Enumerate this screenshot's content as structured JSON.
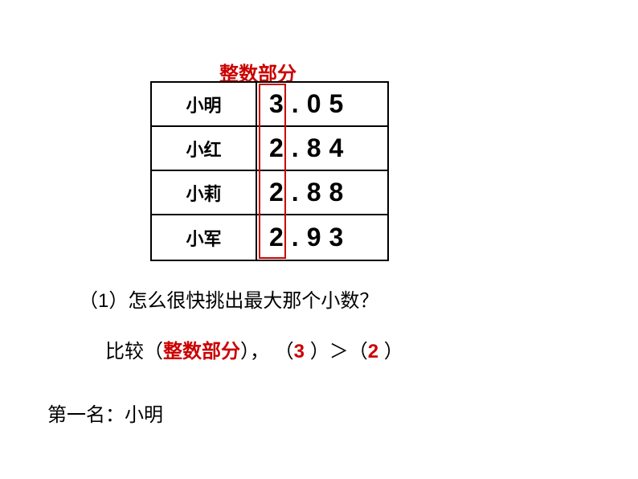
{
  "header_label": "整数部分",
  "table": {
    "rows": [
      {
        "name": "小明",
        "value": "3.05"
      },
      {
        "name": "小红",
        "value": "2.84"
      },
      {
        "name": "小莉",
        "value": "2.88"
      },
      {
        "name": "小军",
        "value": "2.93"
      }
    ]
  },
  "question_text": "（1）怎么很快挑出最大那个小数？",
  "compare": {
    "prefix": "比较（",
    "fill1": "整数部分",
    "mid1": "），  （",
    "fill2": "3",
    "mid2": "   ）＞（",
    "fill3": "2",
    "suffix": "     ）"
  },
  "result_text": "第一名：小明",
  "colors": {
    "accent": "#cc0000",
    "text": "#000000",
    "background": "#ffffff"
  }
}
